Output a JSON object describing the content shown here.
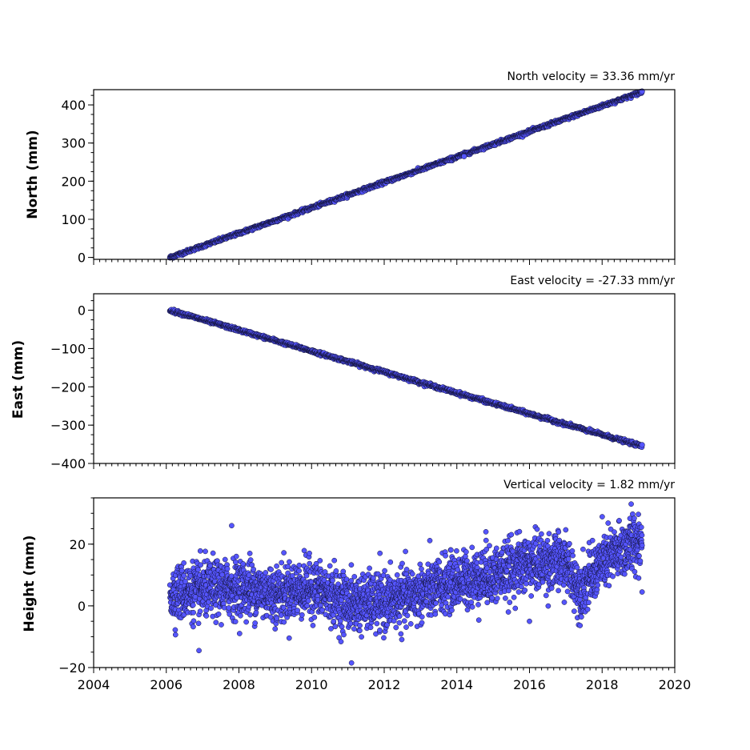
{
  "chart_data": [
    {
      "type": "scatter",
      "title": "North velocity = 33.36 mm/yr",
      "xlabel": "",
      "ylabel": "North (mm)",
      "xlim": [
        2004,
        2020
      ],
      "ylim": [
        -5,
        440
      ],
      "x_ticks": [
        "",
        "",
        "",
        "",
        "",
        "",
        "",
        "",
        ""
      ],
      "y_ticks": [
        "0",
        "100",
        "200",
        "300",
        "400"
      ],
      "y_tick_values": [
        0,
        100,
        200,
        300,
        400
      ],
      "marker_color": "#5555ff",
      "marker_edge_color": "#111133",
      "series": [
        {
          "x_start": 2006.1,
          "x_end": 2019.1,
          "y_start": 0,
          "y_end": 434,
          "noise": 2
        }
      ],
      "outliers": [
        {
          "x": 2014.2,
          "y": 265
        }
      ]
    },
    {
      "type": "scatter",
      "title": "East velocity = -27.33 mm/yr",
      "xlabel": "",
      "ylabel": "East (mm)",
      "xlim": [
        2004,
        2020
      ],
      "ylim": [
        -400,
        43
      ],
      "x_ticks": [
        "",
        "",
        "",
        "",
        "",
        "",
        "",
        "",
        ""
      ],
      "y_ticks": [
        "0",
        "−100",
        "−200",
        "−300",
        "−400"
      ],
      "y_tick_values": [
        0,
        -100,
        -200,
        -300,
        -400
      ],
      "marker_color": "#5555ff",
      "marker_edge_color": "#111133",
      "series": [
        {
          "x_start": 2006.1,
          "x_end": 2019.1,
          "y_start": 0,
          "y_end": -355,
          "noise": 2
        }
      ],
      "outliers": []
    },
    {
      "type": "scatter",
      "title": "Vertical velocity = 1.82 mm/yr",
      "xlabel": "",
      "ylabel": "Height (mm)",
      "xlim": [
        2004,
        2020
      ],
      "ylim": [
        -20,
        35
      ],
      "x_ticks": [
        "2004",
        "2006",
        "2008",
        "2010",
        "2012",
        "2014",
        "2016",
        "2018",
        "2020"
      ],
      "y_ticks": [
        "20",
        "0",
        "−20"
      ],
      "y_tick_values": [
        20,
        0,
        -20
      ],
      "marker_color": "#5555ff",
      "marker_edge_color": "#111133",
      "series": [
        {
          "x_start": 2006.1,
          "x_end": 2019.1,
          "noise": 4.5,
          "trend": [
            {
              "x": 2006.1,
              "y": 4
            },
            {
              "x": 2007.0,
              "y": 5
            },
            {
              "x": 2008.0,
              "y": 6
            },
            {
              "x": 2009.0,
              "y": 4
            },
            {
              "x": 2010.0,
              "y": 6
            },
            {
              "x": 2011.0,
              "y": 1
            },
            {
              "x": 2012.0,
              "y": 1
            },
            {
              "x": 2013.0,
              "y": 4
            },
            {
              "x": 2014.0,
              "y": 8
            },
            {
              "x": 2015.0,
              "y": 10
            },
            {
              "x": 2016.0,
              "y": 14
            },
            {
              "x": 2017.0,
              "y": 14
            },
            {
              "x": 2017.4,
              "y": 5
            },
            {
              "x": 2018.0,
              "y": 14
            },
            {
              "x": 2019.1,
              "y": 22
            }
          ]
        }
      ],
      "outliers": [
        {
          "x": 2007.8,
          "y": 26
        },
        {
          "x": 2011.1,
          "y": -18.5
        },
        {
          "x": 2018.8,
          "y": 33
        },
        {
          "x": 2006.9,
          "y": -14.5
        },
        {
          "x": 2019.1,
          "y": 4.5
        },
        {
          "x": 2008.3,
          "y": 17
        },
        {
          "x": 2014.8,
          "y": 24
        },
        {
          "x": 2016.0,
          "y": -5
        }
      ]
    }
  ]
}
